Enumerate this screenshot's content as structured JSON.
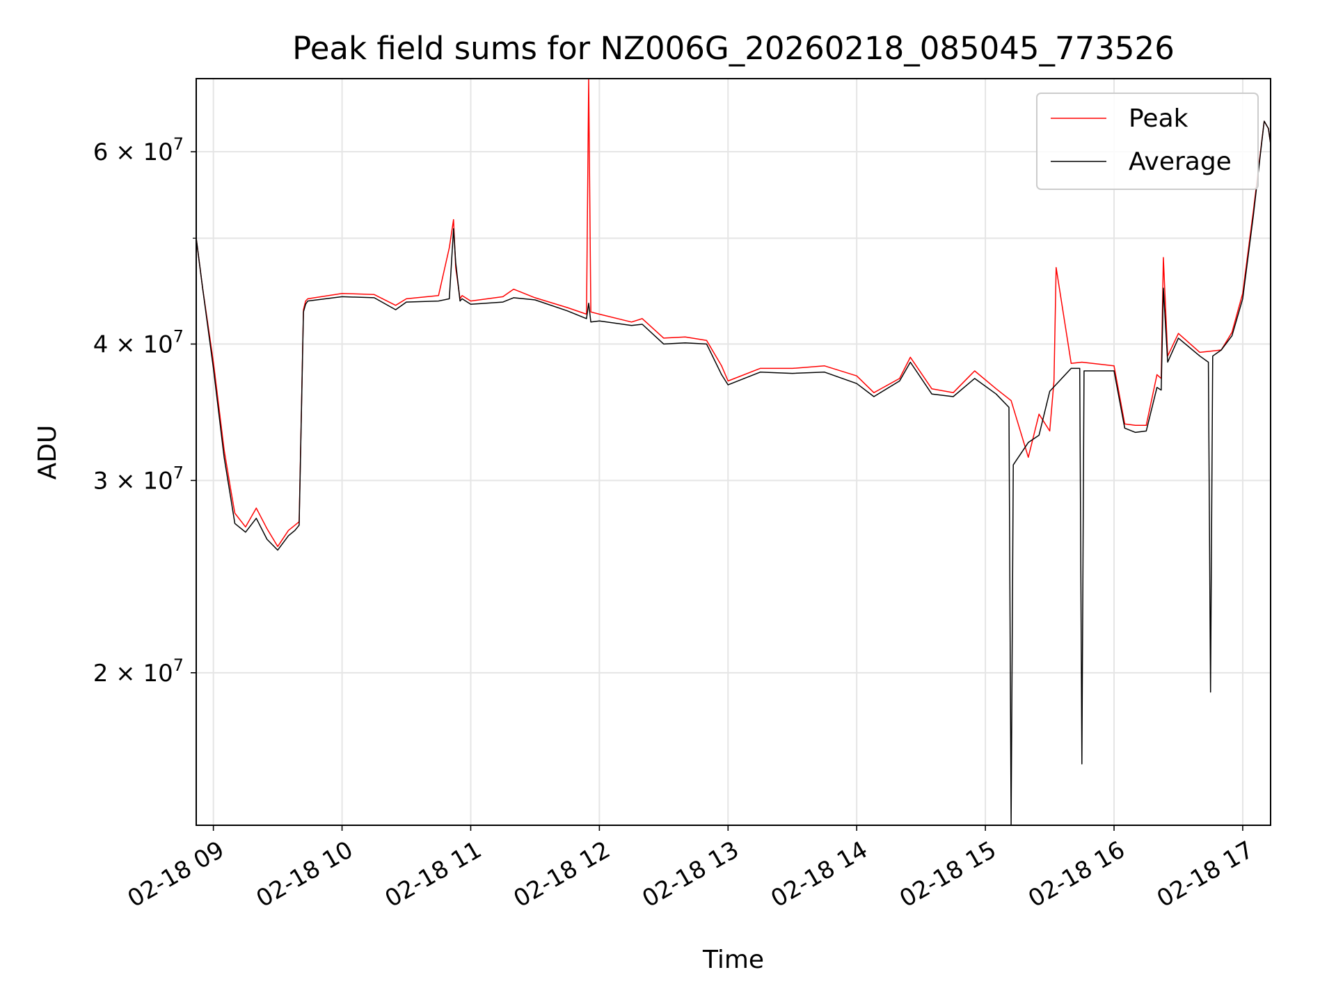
{
  "chart_data": {
    "type": "line",
    "title": "Peak field sums for NZ006G_20260218_085045_773526",
    "xlabel": "Time",
    "ylabel": "ADU",
    "y_scale": "log",
    "xlim": [
      "2026-02-18 08:52",
      "2026-02-18 17:13"
    ],
    "ylim": [
      14500000,
      70000000
    ],
    "grid": true,
    "legend_position": "upper right",
    "x_ticks": [
      "02-18 09",
      "02-18 10",
      "02-18 11",
      "02-18 12",
      "02-18 13",
      "02-18 14",
      "02-18 15",
      "02-18 16",
      "02-18 17"
    ],
    "x_tick_values": [
      "2026-02-18 09:00",
      "2026-02-18 10:00",
      "2026-02-18 11:00",
      "2026-02-18 12:00",
      "2026-02-18 13:00",
      "2026-02-18 14:00",
      "2026-02-18 15:00",
      "2026-02-18 16:00",
      "2026-02-18 17:00"
    ],
    "y_ticks": [
      {
        "value": 20000000,
        "mantissa": "2",
        "exp": "7"
      },
      {
        "value": 30000000,
        "mantissa": "3",
        "exp": "7"
      },
      {
        "value": 40000000,
        "mantissa": "4",
        "exp": "7"
      },
      {
        "value": 60000000,
        "mantissa": "6",
        "exp": "7"
      }
    ],
    "y_minor_ticks": [
      50000000
    ],
    "series": [
      {
        "name": "Peak",
        "color": "#ff0000",
        "x": [
          "2026-02-18 08:52",
          "2026-02-18 08:55",
          "2026-02-18 09:00",
          "2026-02-18 09:05",
          "2026-02-18 09:08",
          "2026-02-18 09:10",
          "2026-02-18 09:15",
          "2026-02-18 09:20",
          "2026-02-18 09:25",
          "2026-02-18 09:30",
          "2026-02-18 09:35",
          "2026-02-18 09:38",
          "2026-02-18 09:40",
          "2026-02-18 09:42",
          "2026-02-18 09:43",
          "2026-02-18 09:44",
          "2026-02-18 10:00",
          "2026-02-18 10:15",
          "2026-02-18 10:25",
          "2026-02-18 10:30",
          "2026-02-18 10:45",
          "2026-02-18 10:50",
          "2026-02-18 10:52",
          "2026-02-18 10:53",
          "2026-02-18 10:55",
          "2026-02-18 10:56",
          "2026-02-18 11:00",
          "2026-02-18 11:15",
          "2026-02-18 11:20",
          "2026-02-18 11:30",
          "2026-02-18 11:45",
          "2026-02-18 11:54",
          "2026-02-18 11:55",
          "2026-02-18 11:56",
          "2026-02-18 12:00",
          "2026-02-18 12:15",
          "2026-02-18 12:20",
          "2026-02-18 12:30",
          "2026-02-18 12:40",
          "2026-02-18 12:50",
          "2026-02-18 12:57",
          "2026-02-18 13:00",
          "2026-02-18 13:15",
          "2026-02-18 13:30",
          "2026-02-18 13:45",
          "2026-02-18 14:00",
          "2026-02-18 14:08",
          "2026-02-18 14:20",
          "2026-02-18 14:25",
          "2026-02-18 14:35",
          "2026-02-18 14:45",
          "2026-02-18 14:55",
          "2026-02-18 15:05",
          "2026-02-18 15:12",
          "2026-02-18 15:20",
          "2026-02-18 15:25",
          "2026-02-18 15:30",
          "2026-02-18 15:32",
          "2026-02-18 15:33",
          "2026-02-18 15:40",
          "2026-02-18 15:45",
          "2026-02-18 16:00",
          "2026-02-18 16:05",
          "2026-02-18 16:10",
          "2026-02-18 16:15",
          "2026-02-18 16:20",
          "2026-02-18 16:22",
          "2026-02-18 16:23",
          "2026-02-18 16:25",
          "2026-02-18 16:30",
          "2026-02-18 16:40",
          "2026-02-18 16:50",
          "2026-02-18 16:55",
          "2026-02-18 17:00",
          "2026-02-18 17:05",
          "2026-02-18 17:10",
          "2026-02-18 17:12",
          "2026-02-18 17:13"
        ],
        "y": [
          50000000,
          45000000,
          38500000,
          32000000,
          29500000,
          28000000,
          27200000,
          28300000,
          27100000,
          26100000,
          27000000,
          27300000,
          27500000,
          43000000,
          43800000,
          44000000,
          44500000,
          44400000,
          43400000,
          44000000,
          44300000,
          49000000,
          52000000,
          47000000,
          44000000,
          44300000,
          43800000,
          44200000,
          44900000,
          44100000,
          43200000,
          42600000,
          70000000,
          42800000,
          42600000,
          41900000,
          42200000,
          40500000,
          40600000,
          40300000,
          38200000,
          37000000,
          38000000,
          38000000,
          38200000,
          37400000,
          36100000,
          37200000,
          38900000,
          36400000,
          36100000,
          37800000,
          36400000,
          35500000,
          31500000,
          34500000,
          33300000,
          37000000,
          47000000,
          38400000,
          38500000,
          38200000,
          33800000,
          33700000,
          33700000,
          37500000,
          37200000,
          48000000,
          39000000,
          40900000,
          39300000,
          39500000,
          41000000,
          44500000,
          53000000,
          64000000,
          63000000,
          61000000
        ]
      },
      {
        "name": "Average",
        "color": "#000000",
        "x": [
          "2026-02-18 08:52",
          "2026-02-18 08:55",
          "2026-02-18 09:00",
          "2026-02-18 09:05",
          "2026-02-18 09:08",
          "2026-02-18 09:10",
          "2026-02-18 09:15",
          "2026-02-18 09:20",
          "2026-02-18 09:25",
          "2026-02-18 09:30",
          "2026-02-18 09:35",
          "2026-02-18 09:38",
          "2026-02-18 09:40",
          "2026-02-18 09:42",
          "2026-02-18 09:43",
          "2026-02-18 09:44",
          "2026-02-18 10:00",
          "2026-02-18 10:15",
          "2026-02-18 10:25",
          "2026-02-18 10:30",
          "2026-02-18 10:45",
          "2026-02-18 10:50",
          "2026-02-18 10:52",
          "2026-02-18 10:53",
          "2026-02-18 10:55",
          "2026-02-18 10:56",
          "2026-02-18 11:00",
          "2026-02-18 11:15",
          "2026-02-18 11:20",
          "2026-02-18 11:30",
          "2026-02-18 11:45",
          "2026-02-18 11:54",
          "2026-02-18 11:55",
          "2026-02-18 11:56",
          "2026-02-18 12:00",
          "2026-02-18 12:15",
          "2026-02-18 12:20",
          "2026-02-18 12:30",
          "2026-02-18 12:40",
          "2026-02-18 12:50",
          "2026-02-18 12:57",
          "2026-02-18 13:00",
          "2026-02-18 13:15",
          "2026-02-18 13:30",
          "2026-02-18 13:45",
          "2026-02-18 14:00",
          "2026-02-18 14:08",
          "2026-02-18 14:20",
          "2026-02-18 14:25",
          "2026-02-18 14:35",
          "2026-02-18 14:45",
          "2026-02-18 14:55",
          "2026-02-18 15:05",
          "2026-02-18 15:11",
          "2026-02-18 15:12",
          "2026-02-18 15:13",
          "2026-02-18 15:20",
          "2026-02-18 15:25",
          "2026-02-18 15:30",
          "2026-02-18 15:40",
          "2026-02-18 15:44",
          "2026-02-18 15:45",
          "2026-02-18 15:46",
          "2026-02-18 16:00",
          "2026-02-18 16:05",
          "2026-02-18 16:10",
          "2026-02-18 16:15",
          "2026-02-18 16:20",
          "2026-02-18 16:22",
          "2026-02-18 16:23",
          "2026-02-18 16:25",
          "2026-02-18 16:30",
          "2026-02-18 16:40",
          "2026-02-18 16:44",
          "2026-02-18 16:45",
          "2026-02-18 16:46",
          "2026-02-18 16:50",
          "2026-02-18 16:55",
          "2026-02-18 17:00",
          "2026-02-18 17:05",
          "2026-02-18 17:10",
          "2026-02-18 17:12",
          "2026-02-18 17:13"
        ],
        "y": [
          50000000,
          45000000,
          38000000,
          31500000,
          29000000,
          27400000,
          26900000,
          27700000,
          26500000,
          25900000,
          26700000,
          27000000,
          27300000,
          42800000,
          43500000,
          43800000,
          44200000,
          44100000,
          43000000,
          43700000,
          43800000,
          44000000,
          51000000,
          47500000,
          43800000,
          44000000,
          43500000,
          43700000,
          44100000,
          43900000,
          42900000,
          42200000,
          43600000,
          41900000,
          42000000,
          41600000,
          41700000,
          40000000,
          40100000,
          40000000,
          37500000,
          36700000,
          37700000,
          37600000,
          37700000,
          36800000,
          35800000,
          37000000,
          38500000,
          36000000,
          35800000,
          37200000,
          36000000,
          35000000,
          14500000,
          31000000,
          32500000,
          33000000,
          36200000,
          38000000,
          38000000,
          16500000,
          37800000,
          37800000,
          33500000,
          33200000,
          33300000,
          36500000,
          36300000,
          45000000,
          38500000,
          40500000,
          39000000,
          38500000,
          19200000,
          39000000,
          39500000,
          40700000,
          44000000,
          52500000,
          64000000,
          63000000,
          61000000
        ]
      }
    ]
  }
}
